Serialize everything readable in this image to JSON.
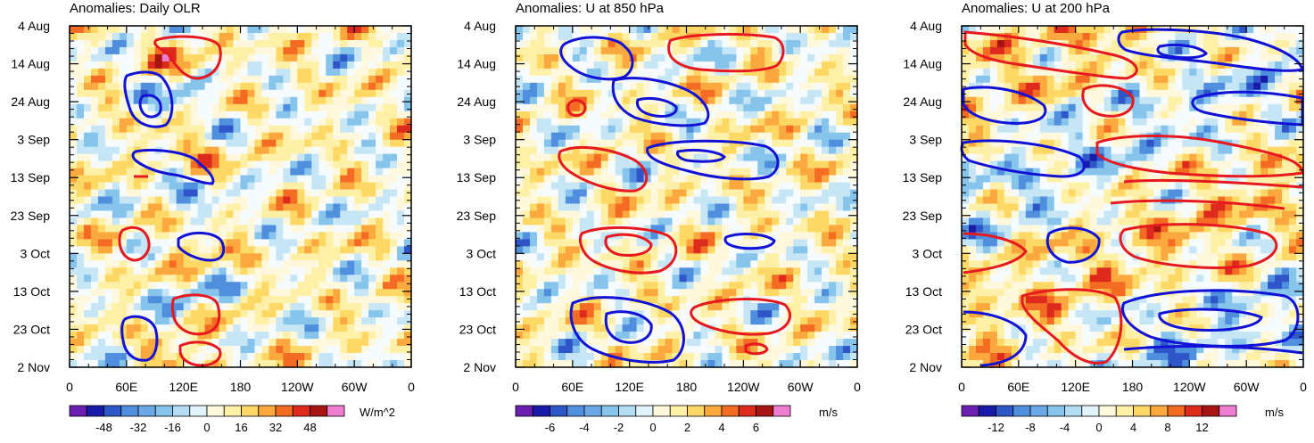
{
  "chart_data": [
    {
      "type": "heatmap",
      "title": "Anomalies: Daily OLR",
      "units": "W/m^2",
      "x_tick_labels": [
        "0",
        "60E",
        "120E",
        "180",
        "120W",
        "60W",
        "0"
      ],
      "y_tick_labels": [
        "4 Aug",
        "14 Aug",
        "24 Aug",
        "3 Sep",
        "13 Sep",
        "23 Sep",
        "3 Oct",
        "13 Oct",
        "23 Oct",
        "2 Nov"
      ],
      "colorbar_labels": [
        "-48",
        "-32",
        "-16",
        "0",
        "16",
        "32",
        "48"
      ],
      "colorbar_range": [
        -64,
        64
      ],
      "contours": [
        {
          "sign": "negative",
          "name": "blue contours (negative anomaly)"
        },
        {
          "sign": "positive",
          "name": "red contours (positive anomaly)"
        }
      ]
    },
    {
      "type": "heatmap",
      "title": "Anomalies: U at 850 hPa",
      "units": "m/s",
      "x_tick_labels": [
        "0",
        "60E",
        "120E",
        "180",
        "120W",
        "60W",
        "0"
      ],
      "y_tick_labels": [
        "4 Aug",
        "14 Aug",
        "24 Aug",
        "3 Sep",
        "13 Sep",
        "23 Sep",
        "3 Oct",
        "13 Oct",
        "23 Oct",
        "2 Nov"
      ],
      "colorbar_labels": [
        "-6",
        "-4",
        "-2",
        "0",
        "2",
        "4",
        "6"
      ],
      "colorbar_range": [
        -8,
        8
      ],
      "contours": [
        {
          "sign": "negative",
          "name": "blue contours (negative anomaly)"
        },
        {
          "sign": "positive",
          "name": "red contours (positive anomaly)"
        }
      ]
    },
    {
      "type": "heatmap",
      "title": "Anomalies: U at 200 hPa",
      "units": "m/s",
      "x_tick_labels": [
        "0",
        "60E",
        "120E",
        "180",
        "120W",
        "60W",
        "0"
      ],
      "y_tick_labels": [
        "4 Aug",
        "14 Aug",
        "24 Aug",
        "3 Sep",
        "13 Sep",
        "23 Sep",
        "3 Oct",
        "13 Oct",
        "23 Oct",
        "2 Nov"
      ],
      "colorbar_labels": [
        "-12",
        "-8",
        "-4",
        "0",
        "4",
        "8",
        "12"
      ],
      "colorbar_range": [
        -16,
        16
      ],
      "contours": [
        {
          "sign": "negative",
          "name": "blue contours (negative anomaly)"
        },
        {
          "sign": "positive",
          "name": "red contours (positive anomaly)"
        }
      ]
    }
  ],
  "palette": [
    "#6a1fb0",
    "#1a1aa8",
    "#2f56c8",
    "#4f8fde",
    "#86c4ec",
    "#c6e6f6",
    "#f6fbff",
    "#fff8dc",
    "#fff0a8",
    "#fdd865",
    "#fba83e",
    "#f46c24",
    "#dd2a1c",
    "#a81414",
    "#f07ed0"
  ]
}
